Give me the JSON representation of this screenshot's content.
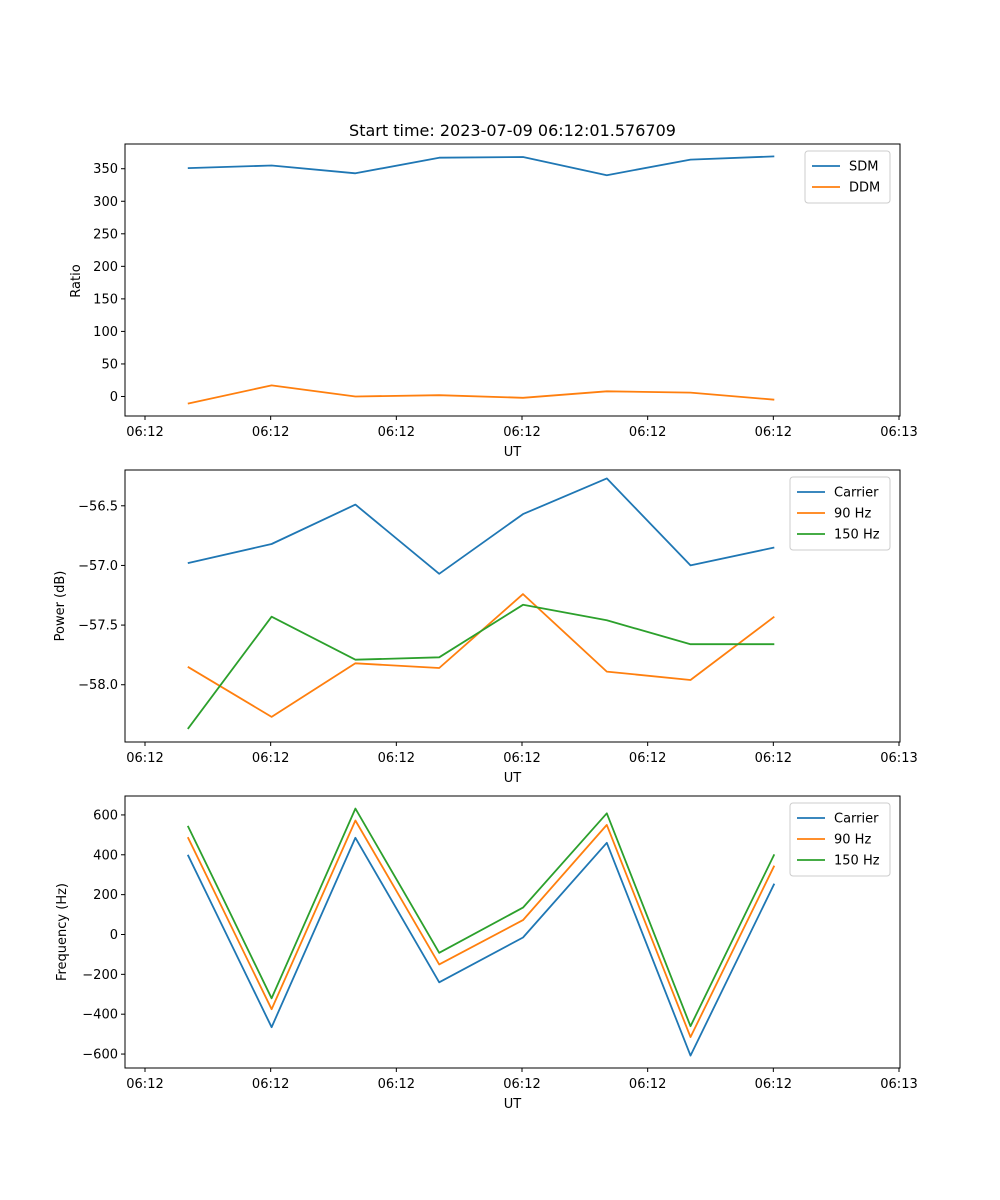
{
  "chart_data": [
    {
      "type": "line",
      "title": "Start time: 2023-07-09 06:12:01.576709",
      "xlabel": "UT",
      "ylabel": "Ratio",
      "xticks": [
        "06:12",
        "06:12",
        "06:12",
        "06:12",
        "06:12",
        "06:12",
        "06:13"
      ],
      "x": [
        1,
        2,
        3,
        4,
        5,
        6,
        7,
        8
      ],
      "xlim": [
        0.25,
        9.5
      ],
      "ylim": [
        -30,
        388
      ],
      "yticks": [
        0,
        50,
        100,
        150,
        200,
        250,
        300,
        350
      ],
      "yticklabels": [
        "0",
        "50",
        "100",
        "150",
        "200",
        "250",
        "300",
        "350"
      ],
      "legend_position": "top-right",
      "series": [
        {
          "name": "SDM",
          "color": "#1f77b4",
          "values": [
            351,
            355,
            343,
            367,
            368,
            340,
            364,
            369
          ]
        },
        {
          "name": "DDM",
          "color": "#ff7f0e",
          "values": [
            -11,
            17,
            0,
            2,
            -2,
            8,
            6,
            -5
          ]
        }
      ]
    },
    {
      "type": "line",
      "title": "",
      "xlabel": "UT",
      "ylabel": "Power (dB)",
      "xticks": [
        "06:12",
        "06:12",
        "06:12",
        "06:12",
        "06:12",
        "06:12",
        "06:13"
      ],
      "x": [
        1,
        2,
        3,
        4,
        5,
        6,
        7,
        8
      ],
      "xlim": [
        0.25,
        9.5
      ],
      "ylim": [
        -58.48,
        -56.2
      ],
      "yticks": [
        -58.0,
        -57.5,
        -57.0,
        -56.5
      ],
      "yticklabels": [
        "−58.0",
        "−57.5",
        "−57.0",
        "−56.5"
      ],
      "legend_position": "top-right",
      "series": [
        {
          "name": "Carrier",
          "color": "#1f77b4",
          "values": [
            -56.98,
            -56.82,
            -56.49,
            -57.07,
            -56.57,
            -56.27,
            -57.0,
            -56.85
          ]
        },
        {
          "name": "90 Hz",
          "color": "#ff7f0e",
          "values": [
            -57.85,
            -58.27,
            -57.82,
            -57.86,
            -57.24,
            -57.89,
            -57.96,
            -57.43
          ]
        },
        {
          "name": "150 Hz",
          "color": "#2ca02c",
          "values": [
            -58.37,
            -57.43,
            -57.79,
            -57.77,
            -57.33,
            -57.46,
            -57.66,
            -57.66
          ]
        }
      ]
    },
    {
      "type": "line",
      "title": "",
      "xlabel": "UT",
      "ylabel": "Frequency (Hz)",
      "xticks": [
        "06:12",
        "06:12",
        "06:12",
        "06:12",
        "06:12",
        "06:12",
        "06:13"
      ],
      "x": [
        1,
        2,
        3,
        4,
        5,
        6,
        7,
        8
      ],
      "xlim": [
        0.25,
        9.5
      ],
      "ylim": [
        -670,
        695
      ],
      "yticks": [
        -600,
        -400,
        -200,
        0,
        200,
        400,
        600
      ],
      "yticklabels": [
        "−600",
        "−400",
        "−200",
        "0",
        "200",
        "400",
        "600"
      ],
      "legend_position": "top-right",
      "series": [
        {
          "name": "Carrier",
          "color": "#1f77b4",
          "values": [
            400,
            -465,
            485,
            -240,
            -15,
            460,
            -608,
            255
          ]
        },
        {
          "name": "90 Hz",
          "color": "#ff7f0e",
          "values": [
            488,
            -375,
            572,
            -150,
            72,
            550,
            -515,
            345
          ]
        },
        {
          "name": "150 Hz",
          "color": "#2ca02c",
          "values": [
            545,
            -320,
            632,
            -92,
            135,
            608,
            -460,
            402
          ]
        }
      ]
    }
  ]
}
